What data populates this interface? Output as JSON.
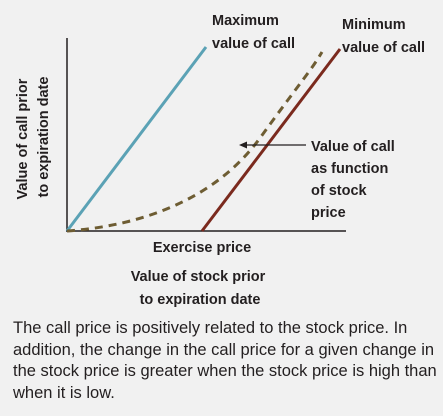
{
  "figure": {
    "y_axis_label": [
      "Value of call prior",
      "to expiration date"
    ],
    "x_axis_tick_label": "Exercise price",
    "x_axis_label": [
      "Value of stock prior",
      "to expiration date"
    ],
    "max_value_label": [
      "Maximum",
      "value of call"
    ],
    "min_value_label": [
      "Minimum",
      "value of call"
    ],
    "call_function_label": [
      "Value of call",
      "as function",
      "of stock",
      "price"
    ]
  },
  "colors": {
    "max_line": "#5ba2b5",
    "min_line": "#7b2a1e",
    "call_curve": "#6e5d33",
    "axis": "#231f20",
    "background": "#f1f1f1"
  },
  "caption": "The call price is positively related to the stock price. In addition, the change in the call price for a given change in the stock price is greater when the stock price is high than when it is low."
}
